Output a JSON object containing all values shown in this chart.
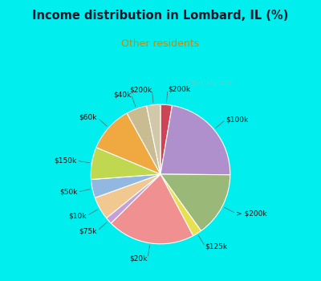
{
  "title": "Income distribution in Lombard, IL (%)",
  "subtitle": "Other residents",
  "title_color": "#1a1a2e",
  "subtitle_color": "#cc8800",
  "bg_cyan": "#00eeee",
  "bg_chart": "#d8ede0",
  "watermark": "City-Data.com",
  "slices": [
    {
      "label": "$200k",
      "value": 2.5,
      "color": "#cc4455"
    },
    {
      "label": "$100k",
      "value": 21,
      "color": "#b090cc"
    },
    {
      "label": "> $200k",
      "value": 14,
      "color": "#9ab878"
    },
    {
      "label": "$125k",
      "value": 2.0,
      "color": "#e8e050"
    },
    {
      "label": "$20k",
      "value": 19,
      "color": "#f09090"
    },
    {
      "label": "$75k",
      "value": 1.5,
      "color": "#c8a0d8"
    },
    {
      "label": "$10k",
      "value": 5,
      "color": "#f0c890"
    },
    {
      "label": "$50k",
      "value": 4,
      "color": "#90b8e0"
    },
    {
      "label": "$150k",
      "value": 7,
      "color": "#c0d850"
    },
    {
      "label": "$60k",
      "value": 10,
      "color": "#f0a840"
    },
    {
      "label": "$40k",
      "value": 4.5,
      "color": "#c8bc90"
    },
    {
      "label": "$200k ",
      "value": 3,
      "color": "#d0c8a8"
    }
  ],
  "label_names": [
    "$200k",
    "$100k",
    "> $200k",
    "$125k",
    "$20k",
    "$75k",
    "$10k",
    "$50k",
    "$150k",
    "$60k",
    "$40k",
    "$200k"
  ]
}
